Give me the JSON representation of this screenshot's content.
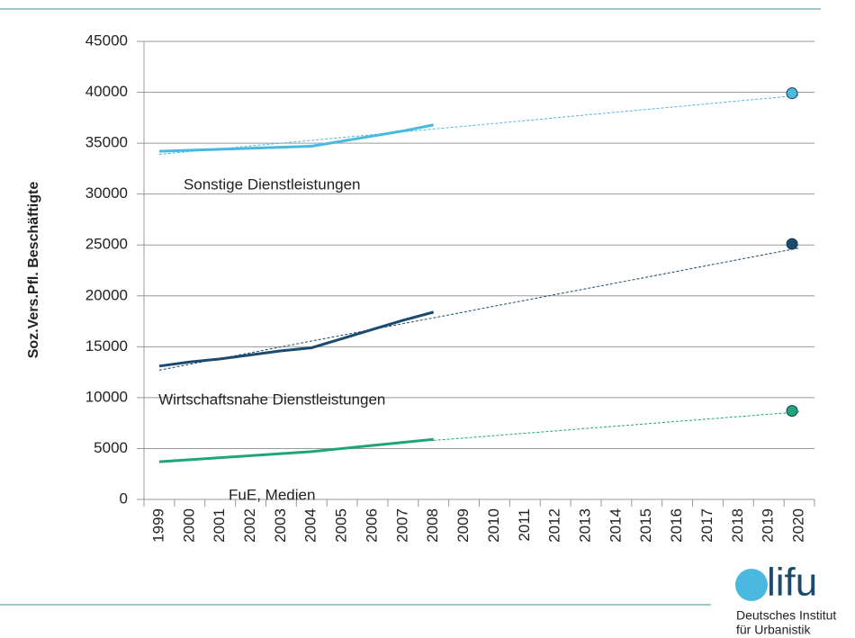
{
  "chart_data": {
    "type": "line",
    "y_label": "Soz.Vers.Pfl. Beschäftigte",
    "categories": [
      "1999",
      "2000",
      "2001",
      "2002",
      "2003",
      "2004",
      "2005",
      "2006",
      "2007",
      "2008",
      "2009",
      "2010",
      "2011",
      "2012",
      "2013",
      "2014",
      "2015",
      "2016",
      "2017",
      "2018",
      "2019",
      "2020"
    ],
    "ylim": [
      0,
      45000
    ],
    "yticks": [
      0,
      5000,
      10000,
      15000,
      20000,
      25000,
      30000,
      35000,
      40000,
      45000
    ],
    "grid": true,
    "series": [
      {
        "name": "Sonstige Dienstleistungen",
        "color": "#4bb8e0",
        "values": [
          34200,
          34300,
          34400,
          34500,
          34600,
          34700,
          35200,
          35700,
          36200,
          36800,
          null,
          null,
          null,
          null,
          null,
          null,
          null,
          null,
          null,
          null,
          null,
          null
        ],
        "trend": [
          33900,
          34180,
          34450,
          34730,
          35000,
          35280,
          35560,
          35830,
          36110,
          36390,
          36660,
          36940,
          37210,
          37490,
          37770,
          38040,
          38320,
          38590,
          38870,
          39150,
          39420,
          39700
        ],
        "point": 39900
      },
      {
        "name": "Wirtschaftsnahe Dienstleistungen",
        "color": "#1a4a6e",
        "values": [
          13100,
          13500,
          13800,
          14200,
          14600,
          14900,
          15800,
          16700,
          17600,
          18400,
          null,
          null,
          null,
          null,
          null,
          null,
          null,
          null,
          null,
          null,
          null,
          null
        ],
        "trend": [
          12700,
          13270,
          13840,
          14410,
          14990,
          15560,
          16130,
          16700,
          17270,
          17840,
          18410,
          18990,
          19560,
          20130,
          20700,
          21270,
          21840,
          22410,
          22990,
          23560,
          24130,
          24700
        ],
        "point": 25100
      },
      {
        "name": "FuE, Medien",
        "color": "#1fa57a",
        "values": [
          3700,
          3900,
          4100,
          4300,
          4500,
          4700,
          5000,
          5300,
          5600,
          5900,
          null,
          null,
          null,
          null,
          null,
          null,
          null,
          null,
          null,
          null,
          null,
          null
        ],
        "trend": [
          null,
          null,
          null,
          null,
          null,
          null,
          null,
          null,
          null,
          5800,
          6030,
          6270,
          6500,
          6730,
          6970,
          7200,
          7430,
          7670,
          7900,
          8130,
          8370,
          8600
        ],
        "point": 8700
      }
    ]
  },
  "logo": {
    "mark": "lifu",
    "line1": "Deutsches Institut",
    "line2": "für Urbanistik"
  }
}
